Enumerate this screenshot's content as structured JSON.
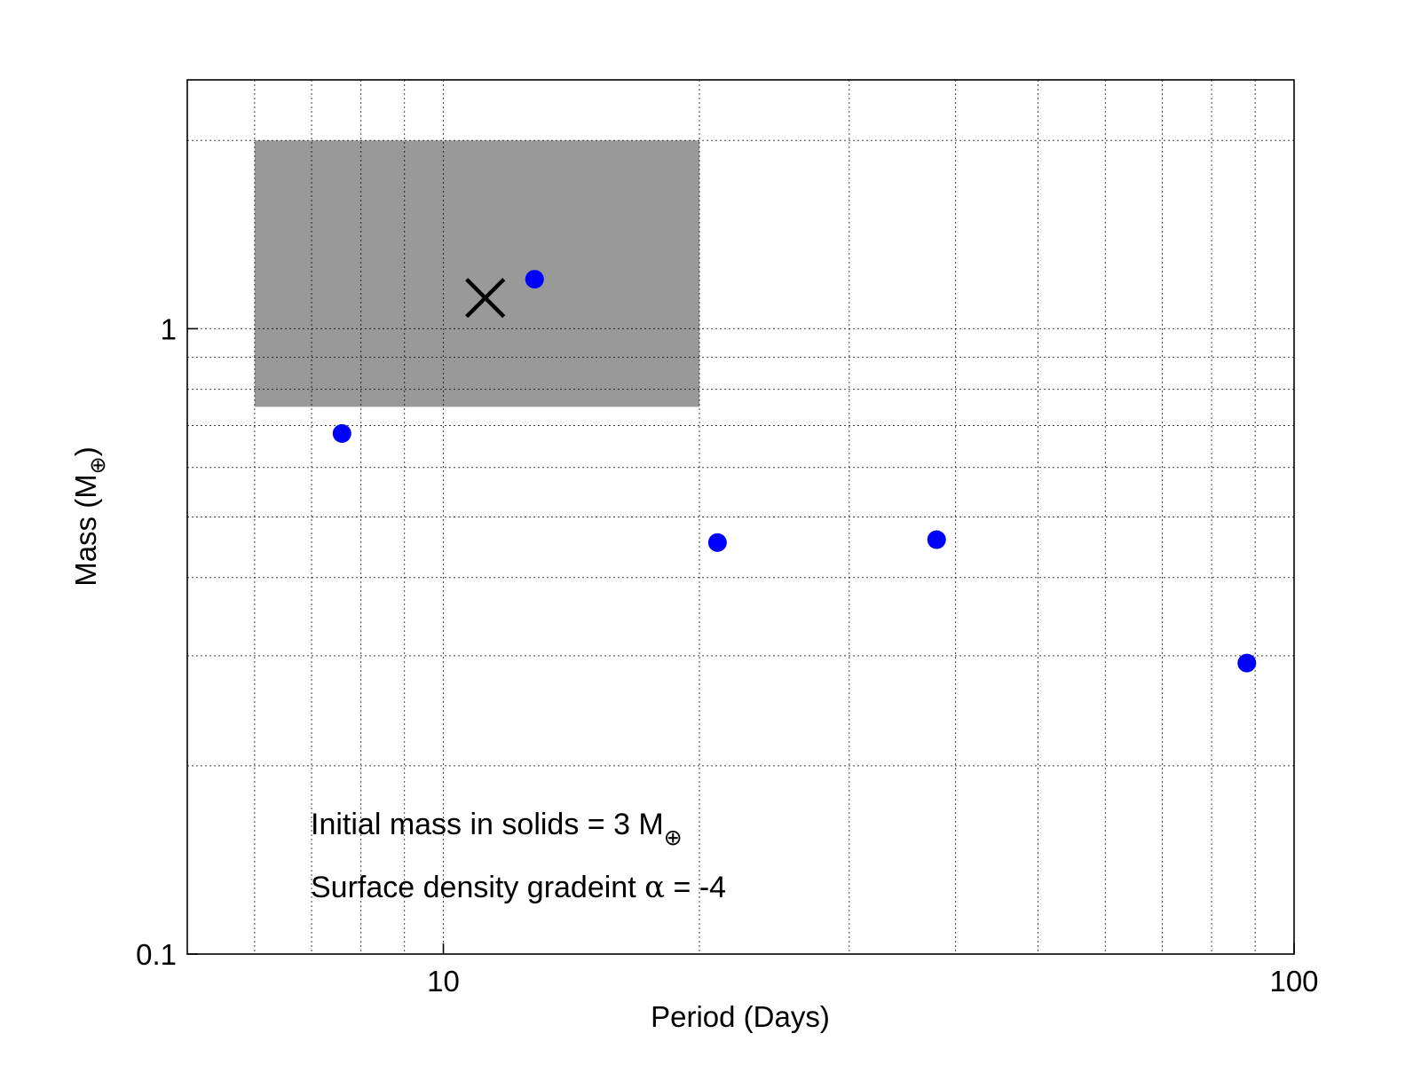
{
  "chart_data": {
    "type": "scatter",
    "xlabel": "Period (Days)",
    "ylabel": {
      "text": "Mass (M",
      "subscript": "⊕",
      "close": ")"
    },
    "xscale": "log",
    "yscale": "log",
    "xlim": [
      5,
      100
    ],
    "ylim": [
      0.1,
      2.5
    ],
    "xticks": [
      {
        "value": 10,
        "label": "10"
      },
      {
        "value": 100,
        "label": "100"
      }
    ],
    "yticks": [
      {
        "value": 0.1,
        "label": "0.1"
      },
      {
        "value": 1,
        "label": "1"
      }
    ],
    "grid": true,
    "points": [
      {
        "x": 7.6,
        "y": 0.68
      },
      {
        "x": 12.8,
        "y": 1.2
      },
      {
        "x": 21.0,
        "y": 0.455
      },
      {
        "x": 38.0,
        "y": 0.46
      },
      {
        "x": 88.0,
        "y": 0.292
      }
    ],
    "point_color": "#0000ff",
    "shaded_region": {
      "x": [
        6,
        20
      ],
      "y": [
        0.75,
        2.0
      ],
      "color": "#999999"
    },
    "marker_x": {
      "x": 11.2,
      "y": 1.12,
      "color": "#000000"
    },
    "annotations": [
      {
        "text": "Initial mass in solids = 3 M",
        "subscript": "⊕"
      },
      {
        "text": "Surface density gradeint ",
        "symbol": "α",
        "suffix": " = -4"
      }
    ]
  }
}
